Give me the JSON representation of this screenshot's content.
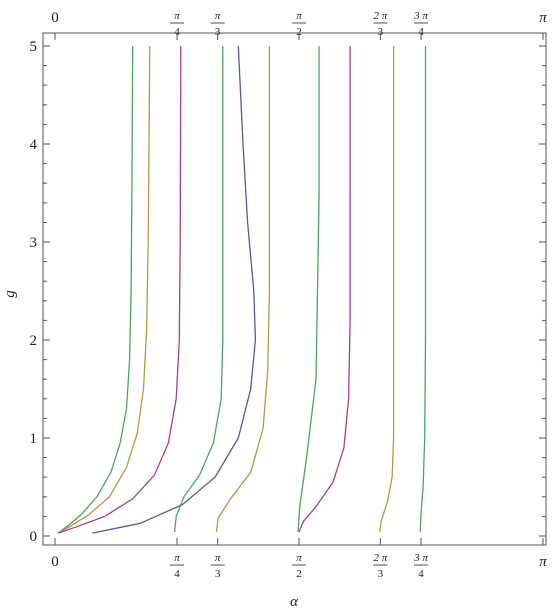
{
  "chart_data": {
    "type": "line",
    "xlabel": "α",
    "ylabel": "g",
    "xlim": [
      0,
      3.14159
    ],
    "ylim": [
      0,
      5
    ],
    "grid": false,
    "legend": "none",
    "y_ticks": [
      {
        "value": 0,
        "label": "0"
      },
      {
        "value": 1,
        "label": "1"
      },
      {
        "value": 2,
        "label": "2"
      },
      {
        "value": 3,
        "label": "3"
      },
      {
        "value": 4,
        "label": "4"
      },
      {
        "value": 5,
        "label": "5"
      }
    ],
    "x_ticks_bottom": [
      {
        "value": 0,
        "num": "0",
        "den": ""
      },
      {
        "value": 0.7854,
        "num": "π",
        "den": "4"
      },
      {
        "value": 1.0472,
        "num": "π",
        "den": "3"
      },
      {
        "value": 1.5708,
        "num": "π",
        "den": "2"
      },
      {
        "value": 2.0944,
        "num": "2 π",
        "den": "3"
      },
      {
        "value": 2.3562,
        "num": "3 π",
        "den": "4"
      },
      {
        "value": 3.14159,
        "num": "π",
        "den": ""
      }
    ],
    "x_ticks_top": [
      {
        "value": 0,
        "num": "0",
        "den": ""
      },
      {
        "value": 0.7854,
        "num": "π",
        "den": "4"
      },
      {
        "value": 1.0472,
        "num": "π",
        "den": "3"
      },
      {
        "value": 1.5708,
        "num": "π",
        "den": "2"
      },
      {
        "value": 2.0944,
        "num": "2 π",
        "den": "3"
      },
      {
        "value": 2.3562,
        "num": "3 π",
        "den": "4"
      },
      {
        "value": 3.14159,
        "num": "π",
        "den": ""
      }
    ],
    "series": [
      {
        "color": "#4aa564",
        "points": [
          [
            0.02,
            0.03
          ],
          [
            0.08,
            0.1
          ],
          [
            0.17,
            0.22
          ],
          [
            0.27,
            0.4
          ],
          [
            0.36,
            0.65
          ],
          [
            0.42,
            0.95
          ],
          [
            0.46,
            1.3
          ],
          [
            0.48,
            1.8
          ],
          [
            0.49,
            2.5
          ],
          [
            0.495,
            3.5
          ],
          [
            0.5,
            5.0
          ]
        ]
      },
      {
        "color": "#b8973e",
        "points": [
          [
            0.02,
            0.03
          ],
          [
            0.1,
            0.1
          ],
          [
            0.22,
            0.22
          ],
          [
            0.35,
            0.4
          ],
          [
            0.46,
            0.7
          ],
          [
            0.53,
            1.05
          ],
          [
            0.57,
            1.5
          ],
          [
            0.59,
            2.1
          ],
          [
            0.6,
            3.0
          ],
          [
            0.61,
            5.0
          ]
        ]
      },
      {
        "color": "#a93d8a",
        "points": [
          [
            0.02,
            0.03
          ],
          [
            0.15,
            0.1
          ],
          [
            0.32,
            0.2
          ],
          [
            0.5,
            0.38
          ],
          [
            0.64,
            0.62
          ],
          [
            0.73,
            0.95
          ],
          [
            0.78,
            1.4
          ],
          [
            0.8,
            2.0
          ],
          [
            0.806,
            3.0
          ],
          [
            0.81,
            5.0
          ]
        ]
      },
      {
        "color": "#5855a8",
        "points": [
          [
            0.24,
            0.03
          ],
          [
            0.55,
            0.13
          ],
          [
            0.82,
            0.32
          ],
          [
            1.03,
            0.6
          ],
          [
            1.18,
            1.0
          ],
          [
            1.26,
            1.5
          ],
          [
            1.29,
            2.0
          ],
          [
            1.28,
            2.5
          ],
          [
            1.24,
            3.2
          ],
          [
            1.21,
            4.0
          ],
          [
            1.18,
            5.0
          ]
        ]
      },
      {
        "color": "#4aa564",
        "points": [
          [
            0.77,
            0.04
          ],
          [
            0.78,
            0.2
          ],
          [
            0.83,
            0.4
          ],
          [
            0.93,
            0.62
          ],
          [
            1.02,
            0.95
          ],
          [
            1.07,
            1.4
          ],
          [
            1.08,
            2.0
          ],
          [
            1.08,
            3.0
          ],
          [
            1.08,
            5.0
          ]
        ]
      },
      {
        "color": "#b8973e",
        "points": [
          [
            1.04,
            0.04
          ],
          [
            1.05,
            0.18
          ],
          [
            1.13,
            0.38
          ],
          [
            1.26,
            0.65
          ],
          [
            1.34,
            1.1
          ],
          [
            1.37,
            1.7
          ],
          [
            1.38,
            2.5
          ],
          [
            1.38,
            3.5
          ],
          [
            1.38,
            5.0
          ]
        ]
      },
      {
        "color": "#4aa564",
        "points": [
          [
            1.565,
            0.04
          ],
          [
            1.575,
            0.3
          ],
          [
            1.62,
            0.8
          ],
          [
            1.68,
            1.6
          ],
          [
            1.69,
            2.5
          ],
          [
            1.7,
            3.5
          ],
          [
            1.7,
            5.0
          ]
        ]
      },
      {
        "color": "#a93d8a",
        "points": [
          [
            1.57,
            0.04
          ],
          [
            1.6,
            0.15
          ],
          [
            1.68,
            0.3
          ],
          [
            1.79,
            0.55
          ],
          [
            1.86,
            0.9
          ],
          [
            1.89,
            1.4
          ],
          [
            1.9,
            2.2
          ],
          [
            1.9,
            3.5
          ],
          [
            1.9,
            5.0
          ]
        ]
      },
      {
        "color": "#b8973e",
        "points": [
          [
            2.09,
            0.04
          ],
          [
            2.1,
            0.15
          ],
          [
            2.14,
            0.35
          ],
          [
            2.17,
            0.6
          ],
          [
            2.18,
            1.0
          ],
          [
            2.18,
            2.0
          ],
          [
            2.18,
            5.0
          ]
        ]
      },
      {
        "color": "#4aa564",
        "points": [
          [
            2.352,
            0.04
          ],
          [
            2.355,
            0.2
          ],
          [
            2.37,
            0.5
          ],
          [
            2.38,
            1.0
          ],
          [
            2.385,
            2.0
          ],
          [
            2.385,
            5.0
          ]
        ]
      }
    ]
  }
}
